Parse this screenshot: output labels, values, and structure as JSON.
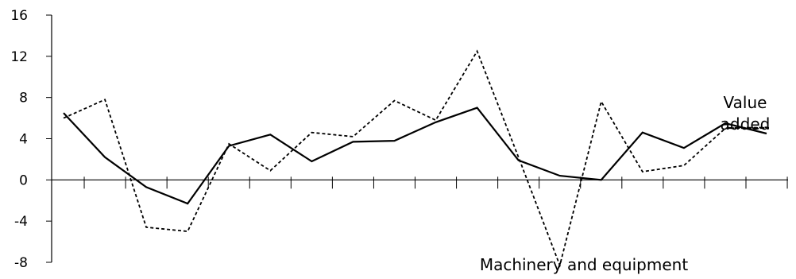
{
  "chart_data": {
    "type": "line",
    "title": "",
    "xlabel": "",
    "ylabel": "",
    "ylim": [
      -8,
      16
    ],
    "yticks": [
      -8,
      -4,
      0,
      4,
      8,
      12,
      16
    ],
    "x_count": 18,
    "grid": false,
    "legend": "none",
    "series": [
      {
        "style": "solid",
        "color": "#000000",
        "values": [
          6.5,
          2.2,
          -0.7,
          -2.3,
          3.3,
          4.4,
          1.8,
          3.7,
          3.8,
          5.6,
          7.0,
          1.9,
          0.4,
          0.0,
          4.6,
          3.1,
          5.5,
          4.5
        ]
      },
      {
        "style": "dashed",
        "color": "#000000",
        "values": [
          6.0,
          7.8,
          -4.6,
          -5.0,
          3.5,
          0.9,
          4.6,
          4.2,
          7.7,
          5.8,
          12.5,
          2.2,
          -8.3,
          7.6,
          0.8,
          1.4,
          5.0,
          5.1
        ]
      }
    ],
    "annotations": [
      {
        "id": "value_added",
        "lines": [
          "Value",
          "added"
        ],
        "marker": "dash"
      },
      {
        "id": "machinery",
        "lines": [
          "Machinery and equipment"
        ]
      }
    ]
  }
}
